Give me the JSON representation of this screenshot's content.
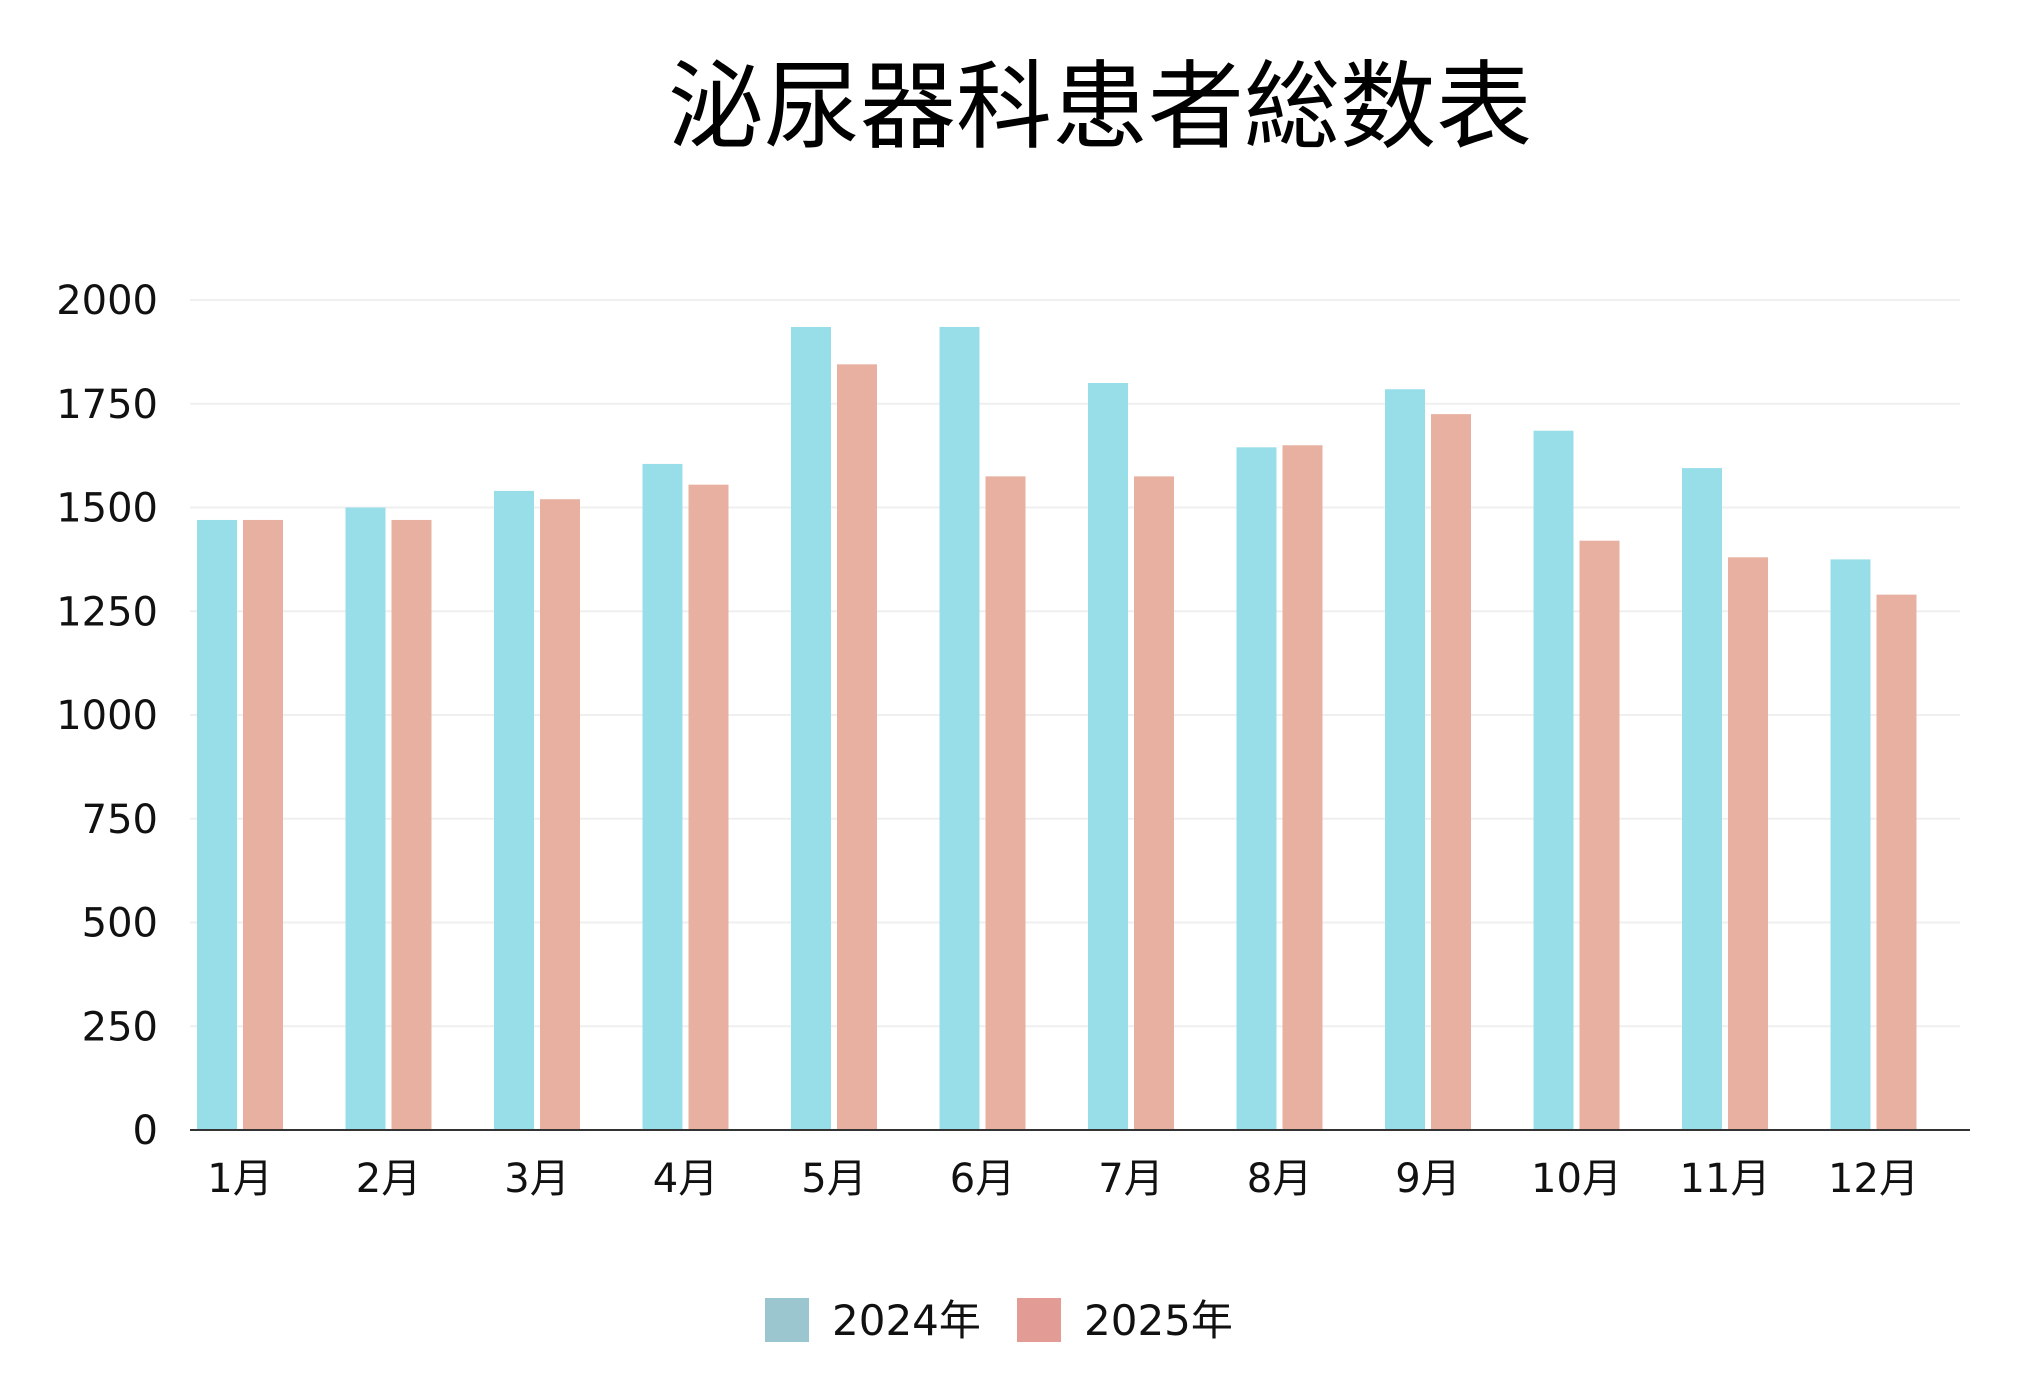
{
  "chart_data": {
    "type": "bar",
    "title": "泌尿器科患者総数表",
    "xlabel": "",
    "ylabel": "",
    "categories": [
      "1月",
      "2月",
      "3月",
      "4月",
      "5月",
      "6月",
      "7月",
      "8月",
      "9月",
      "10月",
      "11月",
      "12月"
    ],
    "yticks": [
      "0",
      "250",
      "500",
      "750",
      "1000",
      "1250",
      "1500",
      "1750",
      "2000"
    ],
    "ylim": [
      0,
      2000
    ],
    "grid": true,
    "legend_position": "bottom",
    "series": [
      {
        "name": "2024年",
        "bar_color": "#98DEE8",
        "legend_color": "#9CC6CF",
        "values": [
          1470,
          1500,
          1540,
          1605,
          1935,
          1935,
          1800,
          1645,
          1785,
          1685,
          1595,
          1375
        ]
      },
      {
        "name": "2025年",
        "bar_color": "#E8B0A0",
        "legend_color": "#E29C95",
        "values": [
          1470,
          1470,
          1520,
          1555,
          1845,
          1575,
          1575,
          1650,
          1725,
          1420,
          1380,
          1290
        ]
      }
    ]
  }
}
